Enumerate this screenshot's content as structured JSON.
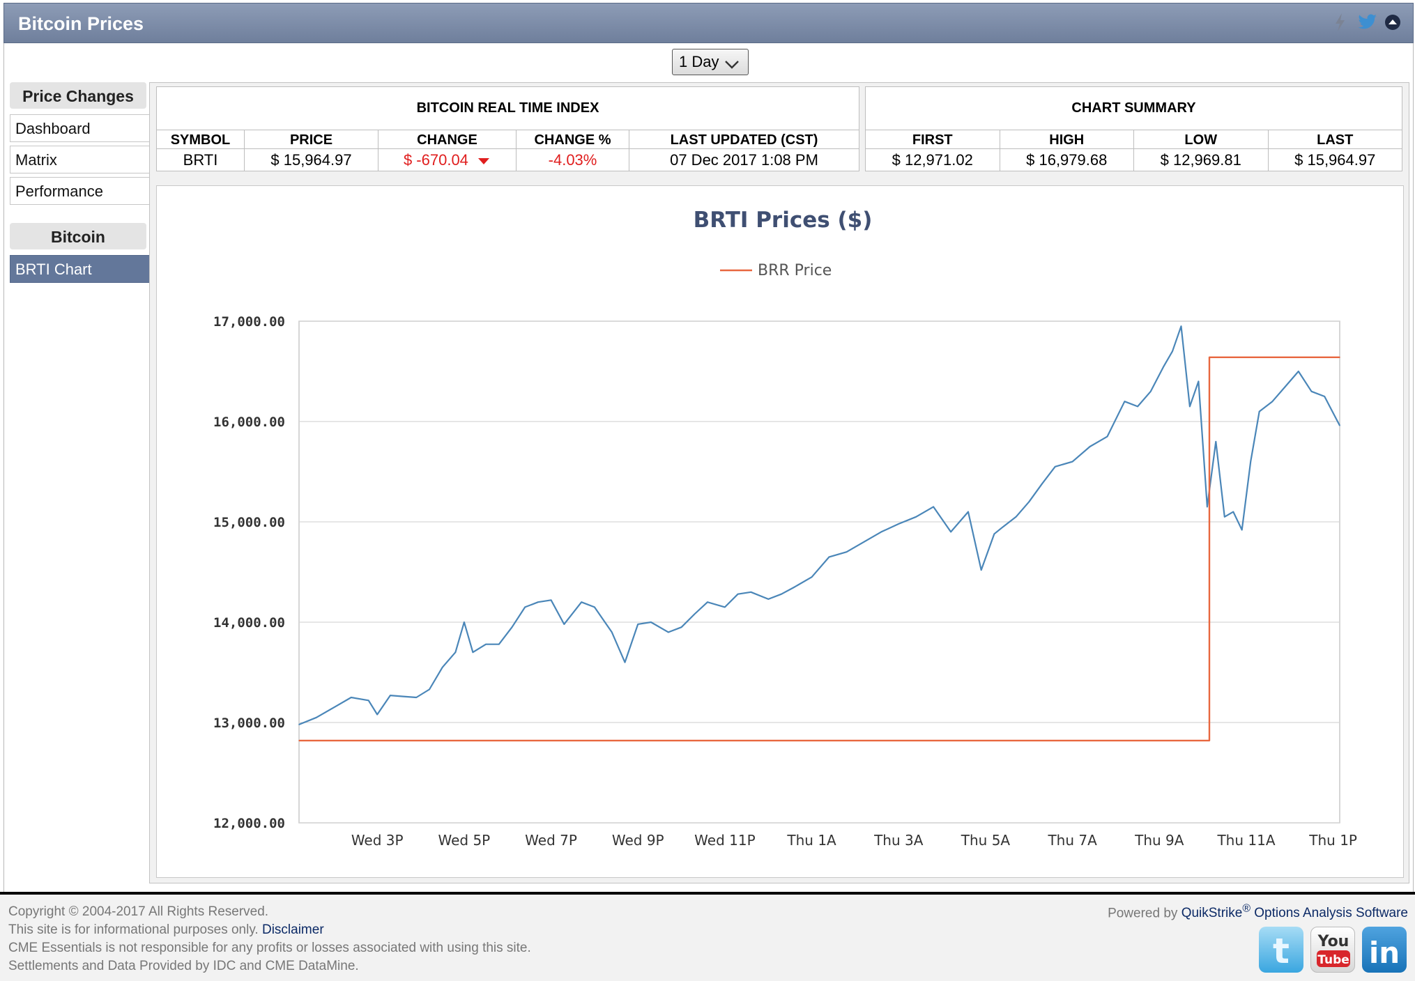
{
  "header": {
    "title": "Bitcoin Prices",
    "icons": [
      "lightning-icon",
      "twitter-icon",
      "collapse-icon"
    ]
  },
  "range_select": {
    "value": "1 Day"
  },
  "nav": {
    "group1_title": "Price Changes",
    "group1_items": [
      {
        "label": "Dashboard"
      },
      {
        "label": "Matrix"
      },
      {
        "label": "Performance"
      }
    ],
    "group2_title": "Bitcoin",
    "group2_items": [
      {
        "label": "BRTI Chart",
        "active": true
      }
    ]
  },
  "index_table": {
    "title": "BITCOIN REAL TIME INDEX",
    "headers": [
      "SYMBOL",
      "PRICE",
      "CHANGE",
      "CHANGE %",
      "LAST UPDATED (CST)"
    ],
    "row": {
      "symbol": "BRTI",
      "price": "$ 15,964.97",
      "change": "$ -670.04",
      "change_pct": "-4.03%",
      "last_updated": "07 Dec 2017 1:08 PM"
    }
  },
  "summary_table": {
    "title": "CHART SUMMARY",
    "headers": [
      "FIRST",
      "HIGH",
      "LOW",
      "LAST"
    ],
    "row": {
      "first": "$ 12,971.02",
      "high": "$ 16,979.68",
      "low": "$ 12,969.81",
      "last": "$ 15,964.97"
    }
  },
  "colors": {
    "price_line": "#4a86b8",
    "brr_line": "#e8673f",
    "negative": "#e01e1e",
    "active_nav": "#63779a"
  },
  "chart_data": {
    "type": "line",
    "title": "BRTI Prices ($)",
    "legend": [
      "BRR Price"
    ],
    "legend_position": "top-center",
    "grid": true,
    "ylim": [
      12000,
      17000
    ],
    "y_ticks": [
      "17,000.00",
      "16,000.00",
      "15,000.00",
      "14,000.00",
      "13,000.00",
      "12,000.00"
    ],
    "x_ticks": [
      "Wed 3P",
      "Wed 5P",
      "Wed 7P",
      "Wed 9P",
      "Wed 11P",
      "Thu 1A",
      "Thu 3A",
      "Thu 5A",
      "Thu 7A",
      "Thu 9A",
      "Thu 11A",
      "Thu 1P"
    ],
    "x_range_hours": [
      13.2,
      37.15
    ],
    "series": [
      {
        "name": "",
        "x_hours": [
          13.2,
          13.6,
          14.0,
          14.4,
          14.8,
          15.0,
          15.3,
          15.6,
          15.9,
          16.2,
          16.5,
          16.8,
          17.0,
          17.2,
          17.5,
          17.8,
          18.1,
          18.4,
          18.7,
          19.0,
          19.3,
          19.7,
          20.0,
          20.4,
          20.7,
          21.0,
          21.3,
          21.7,
          22.0,
          22.3,
          22.6,
          23.0,
          23.3,
          23.6,
          24.0,
          24.3,
          24.6,
          25.0,
          25.4,
          25.8,
          26.2,
          26.6,
          27.0,
          27.4,
          27.8,
          28.2,
          28.6,
          28.9,
          29.2,
          29.4,
          29.7,
          30.0,
          30.3,
          30.6,
          31.0,
          31.4,
          31.8,
          32.2,
          32.5,
          32.8,
          33.1,
          33.3,
          33.5,
          33.7,
          33.9,
          34.1,
          34.3,
          34.5,
          34.7,
          34.9,
          35.1,
          35.3,
          35.6,
          35.9,
          36.2,
          36.5,
          36.8,
          37.15
        ],
        "values": [
          12980,
          13050,
          13150,
          13250,
          13220,
          13080,
          13270,
          13260,
          13250,
          13330,
          13550,
          13700,
          14000,
          13700,
          13780,
          13780,
          13950,
          14150,
          14200,
          14220,
          13980,
          14200,
          14150,
          13900,
          13600,
          13980,
          14000,
          13900,
          13950,
          14080,
          14200,
          14150,
          14280,
          14300,
          14230,
          14280,
          14350,
          14450,
          14650,
          14700,
          14800,
          14900,
          14980,
          15050,
          15150,
          14900,
          15100,
          14520,
          14880,
          14950,
          15050,
          15200,
          15380,
          15550,
          15600,
          15750,
          15850,
          16200,
          16150,
          16300,
          16550,
          16700,
          16950,
          16150,
          16400,
          15150,
          15800,
          15050,
          15100,
          14920,
          15600,
          16100,
          16200,
          16350,
          16500,
          16300,
          16250,
          15960
        ]
      },
      {
        "name": "BRR Price",
        "x_hours": [
          13.2,
          34.15,
          34.15,
          37.15
        ],
        "values": [
          12820,
          12820,
          16640,
          16640
        ]
      }
    ]
  },
  "footer": {
    "copyright": "Copyright © 2004-2017 All Rights Reserved.",
    "info_prefix": "This site is for informational purposes only.",
    "disclaimer_link": "Disclaimer",
    "liability": "CME Essentials is not responsible for any profits or losses associated with using this site.",
    "settlements": "Settlements and Data Provided by IDC and CME DataMine.",
    "powered_prefix": "Powered by",
    "powered_brand": "QuikStrike",
    "powered_reg": "®",
    "powered_suffix": "Options Analysis Software",
    "social_labels": [
      "You",
      "Tube"
    ]
  }
}
